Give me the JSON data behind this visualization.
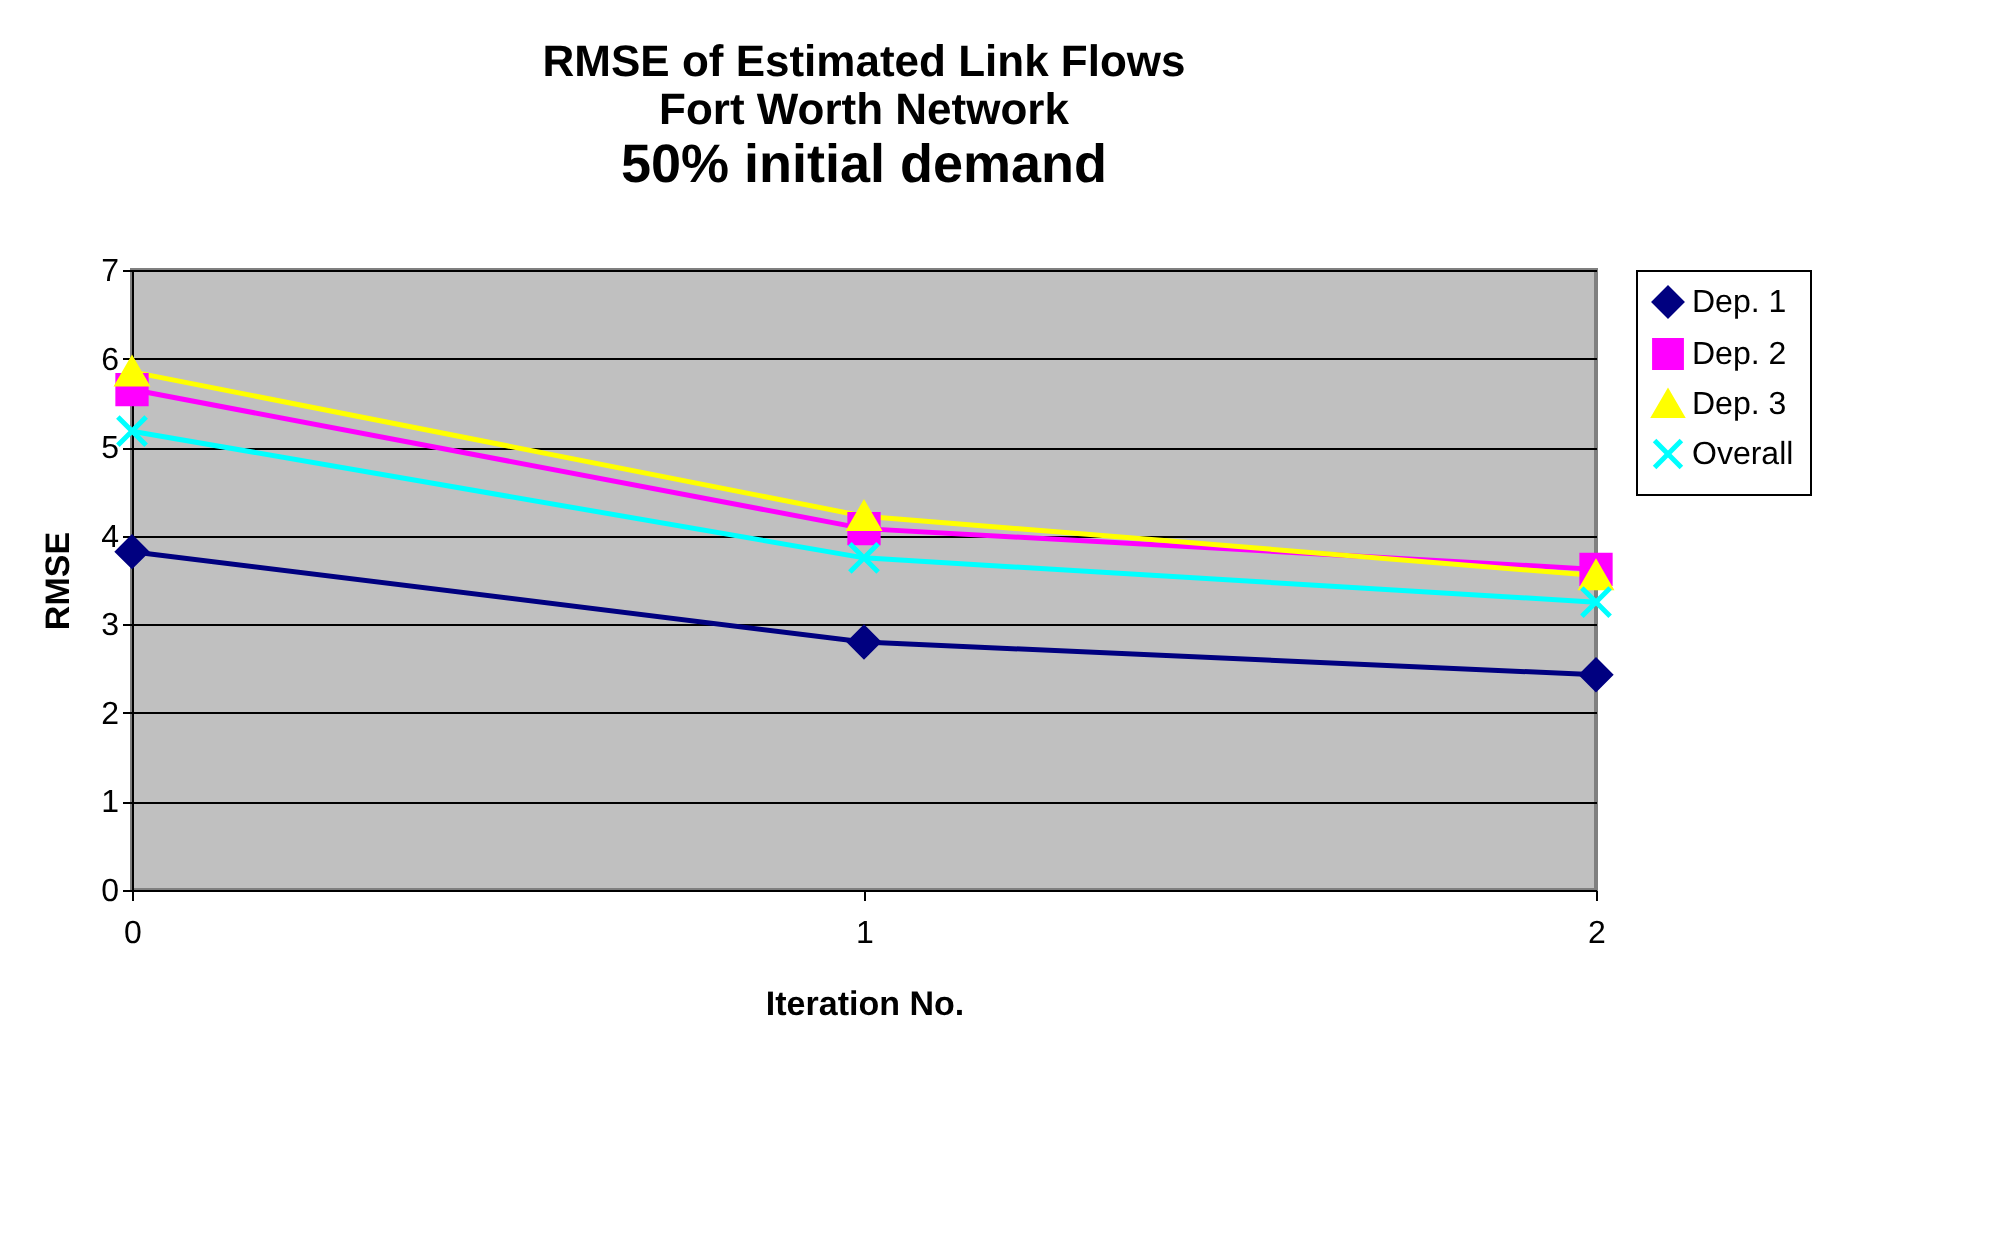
{
  "chart_data": {
    "type": "line",
    "title": "RMSE of Estimated Link Flows\nFort Worth Network",
    "subtitle": "50% initial demand",
    "xlabel": "Iteration No.",
    "ylabel": "RMSE",
    "x": [
      0,
      1,
      2
    ],
    "xlim": [
      0,
      2
    ],
    "xticks": [
      0,
      1,
      2
    ],
    "ylim": [
      0,
      7
    ],
    "yticks": [
      0,
      1,
      2,
      3,
      4,
      5,
      6,
      7
    ],
    "grid": "y",
    "legend": "right",
    "line_style": "solid",
    "series": [
      {
        "name": "Dep. 1",
        "color": "#000080",
        "marker": "diamond",
        "values": [
          3.82,
          2.8,
          2.43
        ]
      },
      {
        "name": "Dep. 2",
        "color": "#ff00ff",
        "marker": "square",
        "values": [
          5.65,
          4.08,
          3.62
        ]
      },
      {
        "name": "Dep. 3",
        "color": "#ffff00",
        "marker": "triangle",
        "values": [
          5.85,
          4.22,
          3.55
        ]
      },
      {
        "name": "Overall",
        "color": "#00ffff",
        "marker": "cross",
        "values": [
          5.18,
          3.75,
          3.25
        ]
      }
    ]
  }
}
